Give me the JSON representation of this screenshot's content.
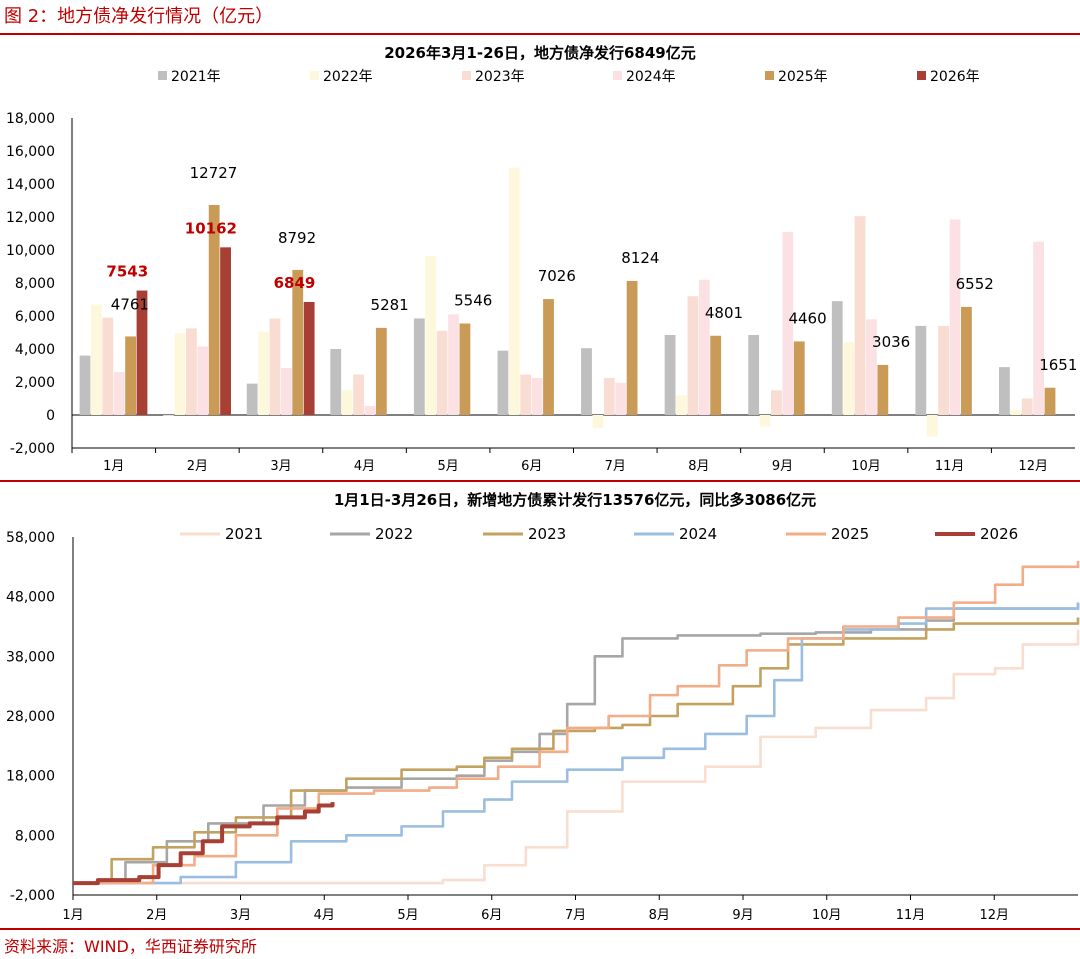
{
  "figure_title": "图 2：地方债净发行情况（亿元）",
  "source": "资料来源：WIND，华西证券研究所",
  "colors": {
    "rule": "#c00000",
    "highlight": "#c00000",
    "bar_series": [
      "#bfbfbf",
      "#fdf8dc",
      "#f9ddd2",
      "#fbe1e4",
      "#c99b57",
      "#a73f34"
    ],
    "line_series": [
      "#f9ddcf",
      "#a6a6a6",
      "#c3a260",
      "#9bbde0",
      "#f2ac86",
      "#a73f34"
    ]
  },
  "chart_data": [
    {
      "type": "bar",
      "title": "2026年3月1-26日，地方债净发行6849亿元",
      "categories": [
        "1月",
        "2月",
        "3月",
        "4月",
        "5月",
        "6月",
        "7月",
        "8月",
        "9月",
        "10月",
        "11月",
        "12月"
      ],
      "yticks": [
        "18,000",
        "16,000",
        "14,000",
        "12,000",
        "10,000",
        "8,000",
        "6,000",
        "4,000",
        "2,000",
        "0",
        "-2,000"
      ],
      "ylim": [
        -2000,
        18000
      ],
      "legend": "top",
      "series": [
        {
          "name": "2021年",
          "values": [
            3600,
            0,
            1900,
            4000,
            5850,
            3900,
            4050,
            4850,
            4850,
            6900,
            5400,
            2900
          ]
        },
        {
          "name": "2022年",
          "values": [
            6700,
            4950,
            5050,
            1500,
            9650,
            15000,
            -800,
            1200,
            -700,
            4400,
            -1300,
            300
          ]
        },
        {
          "name": "2023年",
          "values": [
            5900,
            5250,
            5850,
            2450,
            5100,
            2450,
            2250,
            7200,
            1500,
            12050,
            5400,
            1000
          ]
        },
        {
          "name": "2024年",
          "values": [
            2600,
            4150,
            2850,
            550,
            6100,
            2250,
            1950,
            8200,
            11100,
            5800,
            11850,
            10500
          ]
        },
        {
          "name": "2025年",
          "values": [
            4761,
            12727,
            8792,
            5281,
            5546,
            7026,
            8124,
            4801,
            4460,
            3036,
            6552,
            1651
          ]
        },
        {
          "name": "2026年",
          "values": [
            7543,
            10162,
            6849,
            null,
            null,
            null,
            null,
            null,
            null,
            null,
            null,
            null
          ]
        }
      ],
      "data_labels": {
        "2025年": [
          "4761",
          "12727",
          "8792",
          "5281",
          "5546",
          "7026",
          "8124",
          "4801",
          "4460",
          "3036",
          "6552",
          "1651"
        ],
        "2026年": [
          "7543",
          "10162",
          "6849"
        ]
      }
    },
    {
      "type": "line",
      "title": "1月1日-3月26日，新增地方债累计发行13576亿元，同比多3086亿元",
      "x_tick_labels": [
        "1月",
        "2月",
        "3月",
        "4月",
        "5月",
        "6月",
        "7月",
        "8月",
        "9月",
        "10月",
        "11月",
        "12月"
      ],
      "x_unit": "day of year",
      "xlim": [
        1,
        365
      ],
      "yticks": [
        "58,000",
        "48,000",
        "38,000",
        "28,000",
        "18,000",
        "8,000",
        "-2,000"
      ],
      "ylim": [
        -2000,
        58000
      ],
      "legend": "top",
      "series": [
        {
          "name": "2021",
          "points": [
            [
              1,
              0
            ],
            [
              90,
              0
            ],
            [
              120,
              0
            ],
            [
              135,
              500
            ],
            [
              150,
              3000
            ],
            [
              165,
              6000
            ],
            [
              180,
              12000
            ],
            [
              200,
              17000
            ],
            [
              230,
              19500
            ],
            [
              250,
              24500
            ],
            [
              270,
              26000
            ],
            [
              290,
              29000
            ],
            [
              310,
              31000
            ],
            [
              320,
              35000
            ],
            [
              335,
              36000
            ],
            [
              345,
              40000
            ],
            [
              365,
              42500
            ]
          ]
        },
        {
          "name": "2022",
          "points": [
            [
              1,
              0
            ],
            [
              20,
              3500
            ],
            [
              35,
              7000
            ],
            [
              50,
              10000
            ],
            [
              70,
              13000
            ],
            [
              85,
              15500
            ],
            [
              100,
              16000
            ],
            [
              120,
              17500
            ],
            [
              140,
              18000
            ],
            [
              150,
              20500
            ],
            [
              160,
              22000
            ],
            [
              170,
              25000
            ],
            [
              180,
              30000
            ],
            [
              190,
              38000
            ],
            [
              200,
              41000
            ],
            [
              220,
              41500
            ],
            [
              250,
              41800
            ],
            [
              270,
              42000
            ],
            [
              290,
              42500
            ],
            [
              310,
              44000
            ],
            [
              320,
              46000
            ],
            [
              365,
              47000
            ]
          ]
        },
        {
          "name": "2023",
          "points": [
            [
              1,
              0
            ],
            [
              15,
              4000
            ],
            [
              30,
              6000
            ],
            [
              45,
              8500
            ],
            [
              60,
              11000
            ],
            [
              80,
              15500
            ],
            [
              100,
              17500
            ],
            [
              120,
              19000
            ],
            [
              140,
              19500
            ],
            [
              150,
              21000
            ],
            [
              160,
              22500
            ],
            [
              175,
              25500
            ],
            [
              190,
              26000
            ],
            [
              200,
              26500
            ],
            [
              210,
              28000
            ],
            [
              220,
              30000
            ],
            [
              240,
              33000
            ],
            [
              250,
              36000
            ],
            [
              260,
              40000
            ],
            [
              280,
              41000
            ],
            [
              310,
              42500
            ],
            [
              320,
              43500
            ],
            [
              365,
              44500
            ]
          ]
        },
        {
          "name": "2024",
          "points": [
            [
              1,
              0
            ],
            [
              40,
              1000
            ],
            [
              60,
              3500
            ],
            [
              80,
              7000
            ],
            [
              100,
              8000
            ],
            [
              120,
              9500
            ],
            [
              135,
              12000
            ],
            [
              150,
              14000
            ],
            [
              160,
              17000
            ],
            [
              180,
              19000
            ],
            [
              200,
              21000
            ],
            [
              215,
              22500
            ],
            [
              230,
              25000
            ],
            [
              245,
              28000
            ],
            [
              255,
              34000
            ],
            [
              265,
              41000
            ],
            [
              280,
              42500
            ],
            [
              300,
              43500
            ],
            [
              310,
              46000
            ],
            [
              365,
              47000
            ]
          ]
        },
        {
          "name": "2025",
          "points": [
            [
              1,
              0
            ],
            [
              30,
              3000
            ],
            [
              45,
              4500
            ],
            [
              60,
              8000
            ],
            [
              75,
              12500
            ],
            [
              90,
              15000
            ],
            [
              110,
              15500
            ],
            [
              130,
              16000
            ],
            [
              140,
              17500
            ],
            [
              155,
              19500
            ],
            [
              170,
              22000
            ],
            [
              180,
              26000
            ],
            [
              195,
              28000
            ],
            [
              210,
              31500
            ],
            [
              220,
              33000
            ],
            [
              235,
              36500
            ],
            [
              245,
              39000
            ],
            [
              260,
              41000
            ],
            [
              280,
              43000
            ],
            [
              300,
              44500
            ],
            [
              320,
              47000
            ],
            [
              335,
              50000
            ],
            [
              345,
              53000
            ],
            [
              365,
              54000
            ]
          ]
        },
        {
          "name": "2026",
          "points": [
            [
              1,
              0
            ],
            [
              10,
              500
            ],
            [
              25,
              1000
            ],
            [
              32,
              3000
            ],
            [
              40,
              5000
            ],
            [
              48,
              7000
            ],
            [
              55,
              9500
            ],
            [
              65,
              10000
            ],
            [
              75,
              11000
            ],
            [
              85,
              12000
            ],
            [
              90,
              13000
            ],
            [
              95,
              13576
            ]
          ]
        }
      ]
    }
  ]
}
